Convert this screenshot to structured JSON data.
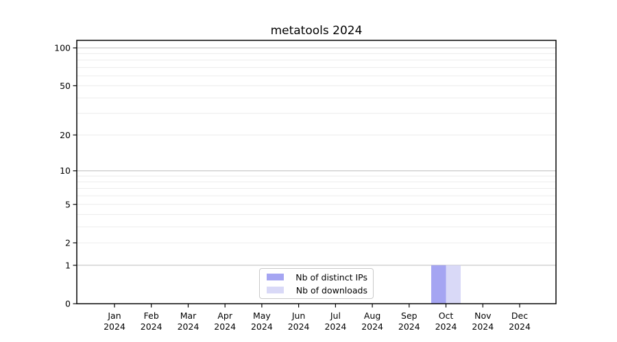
{
  "chart_data": {
    "type": "bar",
    "title": "metatools 2024",
    "categories": [
      "Jan 2024",
      "Feb 2024",
      "Mar 2024",
      "Apr 2024",
      "May 2024",
      "Jun 2024",
      "Jul 2024",
      "Aug 2024",
      "Sep 2024",
      "Oct 2024",
      "Nov 2024",
      "Dec 2024"
    ],
    "series": [
      {
        "name": "Nb of distinct IPs",
        "color": "#a5a5f2",
        "values": [
          0,
          0,
          0,
          0,
          0,
          0,
          0,
          0,
          0,
          1,
          0,
          0
        ]
      },
      {
        "name": "Nb of downloads",
        "color": "#d9d9f7",
        "values": [
          0,
          0,
          0,
          0,
          0,
          0,
          0,
          0,
          0,
          1,
          0,
          0
        ]
      }
    ],
    "xlabel": "",
    "ylabel": "",
    "yscale": "log1p",
    "ylim": [
      0,
      100
    ],
    "yticks_labeled": [
      0,
      1,
      2,
      5,
      10,
      20,
      50,
      100
    ],
    "yticks_minor": [
      3,
      4,
      6,
      7,
      8,
      9,
      30,
      40,
      60,
      70,
      80,
      90
    ],
    "grid": true,
    "legend_position": "lower center",
    "colors": {
      "grid_major": "#bbbbbb",
      "grid_minor": "#ececec",
      "spine": "#000000",
      "text": "#000000",
      "background": "#ffffff"
    }
  }
}
